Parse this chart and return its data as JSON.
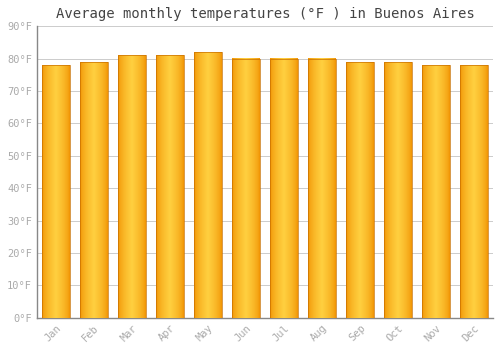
{
  "title": "Average monthly temperatures (°F ) in Buenos Aires",
  "categories": [
    "Jan",
    "Feb",
    "Mar",
    "Apr",
    "May",
    "Jun",
    "Jul",
    "Aug",
    "Sep",
    "Oct",
    "Nov",
    "Dec"
  ],
  "values": [
    78,
    79,
    81,
    81,
    82,
    80,
    80,
    80,
    79,
    79,
    78,
    78
  ],
  "bar_color_center": "#FFD040",
  "bar_color_edge": "#F09000",
  "background_color": "#FFFFFF",
  "plot_bg_color": "#FFFFFF",
  "grid_color": "#CCCCCC",
  "ylim": [
    0,
    90
  ],
  "yticks": [
    0,
    10,
    20,
    30,
    40,
    50,
    60,
    70,
    80,
    90
  ],
  "ytick_labels": [
    "0°F",
    "10°F",
    "20°F",
    "30°F",
    "40°F",
    "50°F",
    "60°F",
    "70°F",
    "80°F",
    "90°F"
  ],
  "title_fontsize": 10,
  "tick_fontsize": 7.5,
  "font_family": "monospace",
  "tick_color": "#AAAAAA",
  "bar_width": 0.72,
  "bar_edge_color": "#C87000",
  "bar_edge_width": 0.5
}
